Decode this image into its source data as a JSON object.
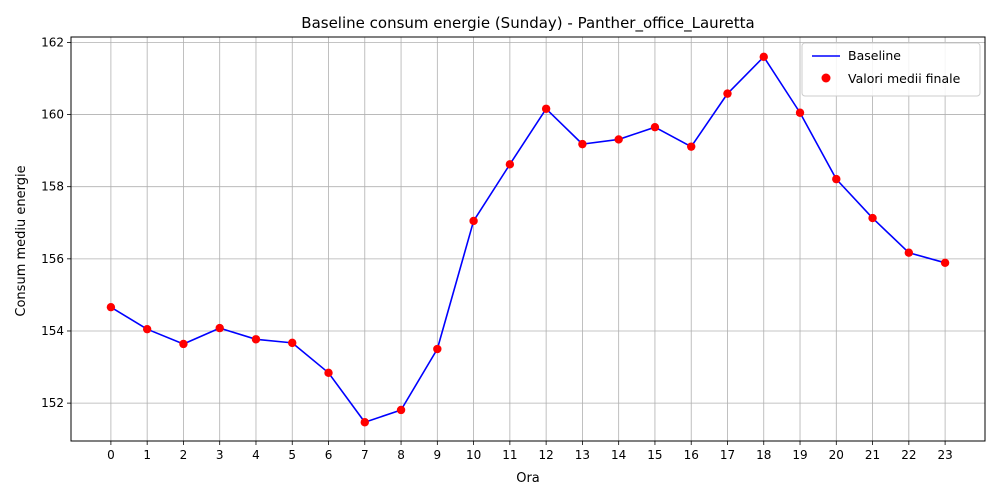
{
  "chart_data": {
    "type": "line",
    "title": "Baseline consum energie (Sunday) - Panther_office_Lauretta",
    "xlabel": "Ora",
    "ylabel": "Consum mediu energie",
    "x": [
      0,
      1,
      2,
      3,
      4,
      5,
      6,
      7,
      8,
      9,
      10,
      11,
      12,
      13,
      14,
      15,
      16,
      17,
      18,
      19,
      20,
      21,
      22,
      23
    ],
    "xlim": [
      -1.1,
      24.1
    ],
    "ylim": [
      150.95,
      162.15
    ],
    "yticks": [
      152,
      154,
      156,
      158,
      160,
      162
    ],
    "grid": true,
    "legend_position": "upper right",
    "series": [
      {
        "name": "Baseline",
        "kind": "line",
        "color": "#0000ff",
        "values": [
          154.66,
          154.05,
          153.64,
          154.08,
          153.77,
          153.67,
          152.84,
          151.47,
          151.81,
          153.5,
          157.05,
          158.62,
          160.16,
          159.18,
          159.31,
          159.65,
          159.11,
          160.58,
          161.6,
          160.05,
          158.21,
          157.13,
          156.17,
          155.89
        ]
      },
      {
        "name": "Valori medii finale",
        "kind": "scatter",
        "color": "#ff0000",
        "values": [
          154.66,
          154.05,
          153.64,
          154.08,
          153.77,
          153.67,
          152.84,
          151.47,
          151.81,
          153.5,
          157.05,
          158.62,
          160.16,
          159.18,
          159.31,
          159.65,
          159.11,
          160.58,
          161.6,
          160.05,
          158.21,
          157.13,
          156.17,
          155.89
        ]
      }
    ]
  }
}
